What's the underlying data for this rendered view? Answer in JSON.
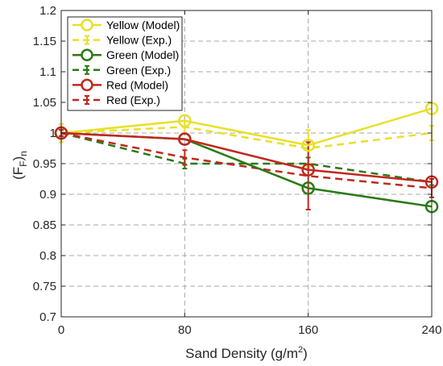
{
  "chart_data": {
    "type": "line",
    "x": [
      0,
      80,
      160,
      240
    ],
    "xlabel": "Sand Density (g/m",
    "xlabel_sup": "2",
    "xlabel_close": ")",
    "ylabel_base": "(F",
    "ylabel_sub": "F",
    "ylabel_close": ")",
    "ylabel_sub2": "n",
    "xlim": [
      0,
      240
    ],
    "ylim": [
      0.7,
      1.2
    ],
    "xticks": [
      "0",
      "80",
      "160",
      "240"
    ],
    "yticks": [
      "0.7",
      "0.75",
      "0.8",
      "0.85",
      "0.9",
      "0.95",
      "1",
      "1.05",
      "1.1",
      "1.15",
      "1.2"
    ],
    "grid": true,
    "legend_position": "top-left",
    "series": [
      {
        "name": "Yellow (Model)",
        "color": "#e8e02a",
        "style": "solid",
        "marker": "circle",
        "values": [
          1.0,
          1.02,
          0.98,
          1.04
        ]
      },
      {
        "name": "Yellow (Exp.)",
        "color": "#e8e02a",
        "style": "dashed",
        "marker": "errorbar",
        "values": [
          1.0,
          1.01,
          0.975,
          1.0
        ],
        "errors": [
          0.015,
          0.01,
          0.03,
          0.012
        ]
      },
      {
        "name": "Green (Model)",
        "color": "#2a7a14",
        "style": "solid",
        "marker": "circle",
        "values": [
          1.0,
          0.99,
          0.91,
          0.88
        ]
      },
      {
        "name": "Green (Exp.)",
        "color": "#2a7a14",
        "style": "dashed",
        "marker": "errorbar",
        "values": [
          1.0,
          0.95,
          0.95,
          0.92
        ],
        "errors": [
          0.005,
          0.008,
          0.01,
          0.005
        ]
      },
      {
        "name": "Red (Model)",
        "color": "#c0281e",
        "style": "solid",
        "marker": "circle",
        "values": [
          1.0,
          0.99,
          0.94,
          0.92
        ]
      },
      {
        "name": "Red (Exp.)",
        "color": "#c0281e",
        "style": "dashed",
        "marker": "errorbar",
        "values": [
          1.0,
          0.96,
          0.93,
          0.91
        ],
        "errors": [
          0.005,
          0.012,
          0.055,
          0.015
        ]
      }
    ]
  }
}
